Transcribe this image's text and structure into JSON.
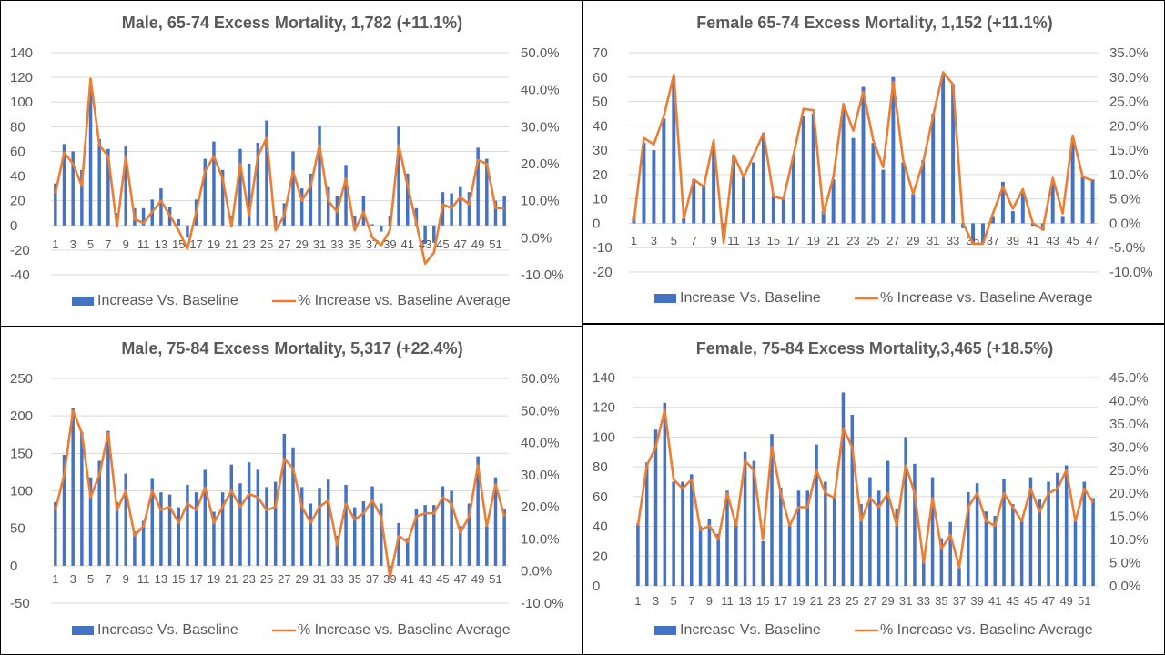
{
  "chart_data": [
    {
      "type": "bar",
      "title": "Male, 65-74 Excess Mortality, 1,782   (+11.1%)",
      "xlabel": "",
      "ylabel": "",
      "ylim": [
        -40,
        140
      ],
      "y2lim": [
        -0.1,
        0.5
      ],
      "yticks": [
        "140",
        "120",
        "100",
        "80",
        "60",
        "40",
        "20",
        "0",
        "-20",
        "-40"
      ],
      "y2ticks": [
        "50.0%",
        "40.0%",
        "30.0%",
        "20.0%",
        "10.0%",
        "0.0%",
        "-10.0%"
      ],
      "grid": true,
      "legend_position": "bottom",
      "categories": [
        1,
        2,
        3,
        4,
        5,
        6,
        7,
        8,
        9,
        10,
        11,
        12,
        13,
        14,
        15,
        16,
        17,
        18,
        19,
        20,
        21,
        22,
        23,
        24,
        25,
        26,
        27,
        28,
        29,
        30,
        31,
        32,
        33,
        34,
        35,
        36,
        37,
        38,
        39,
        40,
        41,
        42,
        43,
        44,
        45,
        46,
        47,
        48,
        49,
        50,
        51,
        52
      ],
      "series": [
        {
          "name": "Increase Vs. Baseline",
          "kind": "bar",
          "axis": "left",
          "color": "#4472C4",
          "values": [
            34,
            66,
            60,
            45,
            115,
            70,
            62,
            10,
            64,
            14,
            14,
            21,
            30,
            15,
            5,
            -10,
            21,
            54,
            68,
            45,
            8,
            62,
            50,
            67,
            85,
            8,
            18,
            60,
            30,
            42,
            81,
            31,
            24,
            49,
            8,
            24,
            1,
            -5,
            8,
            80,
            42,
            14,
            -15,
            -14,
            27,
            26,
            31,
            27,
            63,
            54,
            20,
            24
          ]
        },
        {
          "name": "% Increase vs. Baseline Average",
          "kind": "line",
          "axis": "right",
          "color": "#ED7D31",
          "values": [
            0.12,
            0.23,
            0.2,
            0.14,
            0.43,
            0.25,
            0.22,
            0.03,
            0.22,
            0.05,
            0.04,
            0.07,
            0.1,
            0.06,
            0.02,
            -0.03,
            0.07,
            0.18,
            0.22,
            0.16,
            0.03,
            0.2,
            0.06,
            0.22,
            0.27,
            0.02,
            0.06,
            0.18,
            0.1,
            0.14,
            0.25,
            0.1,
            0.07,
            0.16,
            0.02,
            0.07,
            0.0,
            -0.02,
            0.02,
            0.25,
            0.14,
            0.04,
            -0.07,
            -0.04,
            0.09,
            0.08,
            0.11,
            0.09,
            0.21,
            0.2,
            0.08,
            0.08
          ]
        }
      ]
    },
    {
      "type": "bar",
      "title": "Female 65-74 Excess Mortality, 1,152 (+11.1%)",
      "xlabel": "",
      "ylabel": "",
      "ylim": [
        -20,
        70
      ],
      "y2lim": [
        -0.1,
        0.35
      ],
      "yticks": [
        "70",
        "60",
        "50",
        "40",
        "30",
        "20",
        "10",
        "0",
        "-10",
        "-20"
      ],
      "y2ticks": [
        "35.0%",
        "30.0%",
        "25.0%",
        "20.0%",
        "15.0%",
        "10.0%",
        "5.0%",
        "0.0%",
        "-5.0%",
        "-10.0%"
      ],
      "grid": true,
      "legend_position": "bottom",
      "categories": [
        1,
        2,
        3,
        4,
        5,
        6,
        7,
        8,
        9,
        10,
        11,
        12,
        13,
        14,
        15,
        16,
        17,
        18,
        19,
        20,
        21,
        22,
        23,
        24,
        25,
        26,
        27,
        28,
        29,
        30,
        31,
        32,
        33,
        34,
        35,
        36,
        37,
        38,
        39,
        40,
        41,
        42,
        43,
        44,
        45,
        46,
        47
      ],
      "series": [
        {
          "name": "Increase Vs. Baseline",
          "kind": "bar",
          "axis": "left",
          "color": "#4472C4",
          "values": [
            3,
            33,
            30,
            43,
            60,
            2,
            18,
            15,
            31,
            -6,
            28,
            19,
            25,
            37,
            12,
            10,
            28,
            44,
            45,
            5,
            18,
            47,
            35,
            56,
            33,
            22,
            60,
            25,
            12,
            26,
            45,
            61,
            57,
            -2,
            -8,
            -8,
            3,
            17,
            5,
            13,
            -1,
            -3,
            17,
            3,
            35,
            19,
            18
          ]
        },
        {
          "name": "% Increase vs. Baseline Average",
          "kind": "line",
          "axis": "right",
          "color": "#ED7D31",
          "values": [
            0.005,
            0.175,
            0.162,
            0.22,
            0.305,
            0.01,
            0.09,
            0.075,
            0.17,
            -0.04,
            0.14,
            0.095,
            0.14,
            0.185,
            0.055,
            0.05,
            0.14,
            0.235,
            0.232,
            0.02,
            0.095,
            0.245,
            0.19,
            0.27,
            0.17,
            0.115,
            0.29,
            0.13,
            0.06,
            0.125,
            0.22,
            0.31,
            0.285,
            0.0,
            -0.042,
            -0.042,
            0.02,
            0.075,
            0.03,
            0.07,
            0.0,
            -0.012,
            0.093,
            0.02,
            0.18,
            0.095,
            0.088
          ]
        }
      ]
    },
    {
      "type": "bar",
      "title": "Male, 75-84 Excess Mortality, 5,317 (+22.4%)",
      "xlabel": "",
      "ylabel": "",
      "ylim": [
        -50,
        250
      ],
      "y2lim": [
        -0.1,
        0.6
      ],
      "yticks": [
        "250",
        "200",
        "150",
        "100",
        "50",
        "0",
        "-50"
      ],
      "y2ticks": [
        "60.0%",
        "50.0%",
        "40.0%",
        "30.0%",
        "20.0%",
        "10.0%",
        "0.0%",
        "-10.0%"
      ],
      "grid": true,
      "legend_position": "bottom",
      "categories": [
        1,
        2,
        3,
        4,
        5,
        6,
        7,
        8,
        9,
        10,
        11,
        12,
        13,
        14,
        15,
        16,
        17,
        18,
        19,
        20,
        21,
        22,
        23,
        24,
        25,
        26,
        27,
        28,
        29,
        30,
        31,
        32,
        33,
        34,
        35,
        36,
        37,
        38,
        39,
        40,
        41,
        42,
        43,
        44,
        45,
        46,
        47,
        48,
        49,
        50,
        51,
        52
      ],
      "series": [
        {
          "name": "Increase Vs. Baseline",
          "kind": "bar",
          "axis": "left",
          "color": "#4472C4",
          "values": [
            85,
            148,
            210,
            178,
            118,
            140,
            180,
            85,
            123,
            46,
            60,
            117,
            98,
            95,
            78,
            108,
            98,
            128,
            72,
            98,
            135,
            110,
            138,
            128,
            105,
            112,
            176,
            158,
            105,
            83,
            104,
            115,
            40,
            108,
            78,
            86,
            106,
            83,
            -10,
            57,
            37,
            76,
            81,
            81,
            106,
            100,
            53,
            83,
            146,
            53,
            118,
            75
          ]
        },
        {
          "name": "% Increase vs. Baseline Average",
          "kind": "line",
          "axis": "right",
          "color": "#ED7D31",
          "values": [
            0.19,
            0.3,
            0.5,
            0.43,
            0.23,
            0.3,
            0.43,
            0.19,
            0.25,
            0.11,
            0.14,
            0.25,
            0.19,
            0.2,
            0.15,
            0.21,
            0.19,
            0.26,
            0.15,
            0.2,
            0.25,
            0.2,
            0.24,
            0.23,
            0.19,
            0.2,
            0.35,
            0.32,
            0.2,
            0.15,
            0.2,
            0.22,
            0.08,
            0.21,
            0.16,
            0.18,
            0.22,
            0.17,
            -0.02,
            0.11,
            0.09,
            0.17,
            0.18,
            0.18,
            0.23,
            0.21,
            0.12,
            0.17,
            0.33,
            0.14,
            0.27,
            0.17
          ]
        }
      ]
    },
    {
      "type": "bar",
      "title": "Female, 75-84 Excess Mortality,3,465 (+18.5%)",
      "xlabel": "",
      "ylabel": "",
      "ylim": [
        0,
        140
      ],
      "y2lim": [
        0,
        0.45
      ],
      "yticks": [
        "140",
        "120",
        "100",
        "80",
        "60",
        "40",
        "20",
        "0"
      ],
      "y2ticks": [
        "45.0%",
        "40.0%",
        "35.0%",
        "30.0%",
        "25.0%",
        "20.0%",
        "15.0%",
        "10.0%",
        "5.0%",
        "0.0%"
      ],
      "grid": true,
      "legend_position": "bottom",
      "categories": [
        1,
        2,
        3,
        4,
        5,
        6,
        7,
        8,
        9,
        10,
        11,
        12,
        13,
        14,
        15,
        16,
        17,
        18,
        19,
        20,
        21,
        22,
        23,
        24,
        25,
        26,
        27,
        28,
        29,
        30,
        31,
        32,
        33,
        34,
        35,
        36,
        37,
        38,
        39,
        40,
        41,
        42,
        43,
        44,
        45,
        46,
        47,
        48,
        49,
        50,
        51,
        52
      ],
      "series": [
        {
          "name": "Increase Vs. Baseline",
          "kind": "bar",
          "axis": "left",
          "color": "#4472C4",
          "values": [
            42,
            83,
            105,
            123,
            70,
            70,
            75,
            40,
            45,
            35,
            64,
            45,
            90,
            84,
            30,
            102,
            66,
            42,
            64,
            64,
            95,
            70,
            60,
            130,
            115,
            55,
            73,
            64,
            84,
            52,
            100,
            82,
            18,
            73,
            32,
            43,
            12,
            63,
            69,
            50,
            47,
            72,
            55,
            45,
            73,
            58,
            70,
            76,
            81,
            44,
            70,
            59
          ]
        },
        {
          "name": "% Increase vs. Baseline Average",
          "kind": "line",
          "axis": "right",
          "color": "#ED7D31",
          "values": [
            0.13,
            0.26,
            0.3,
            0.38,
            0.23,
            0.21,
            0.23,
            0.12,
            0.13,
            0.1,
            0.2,
            0.13,
            0.27,
            0.25,
            0.1,
            0.3,
            0.2,
            0.13,
            0.17,
            0.17,
            0.25,
            0.2,
            0.19,
            0.34,
            0.3,
            0.14,
            0.19,
            0.17,
            0.2,
            0.13,
            0.26,
            0.2,
            0.05,
            0.19,
            0.08,
            0.11,
            0.04,
            0.17,
            0.2,
            0.14,
            0.13,
            0.2,
            0.17,
            0.14,
            0.21,
            0.16,
            0.2,
            0.21,
            0.25,
            0.14,
            0.21,
            0.18
          ]
        }
      ]
    }
  ]
}
